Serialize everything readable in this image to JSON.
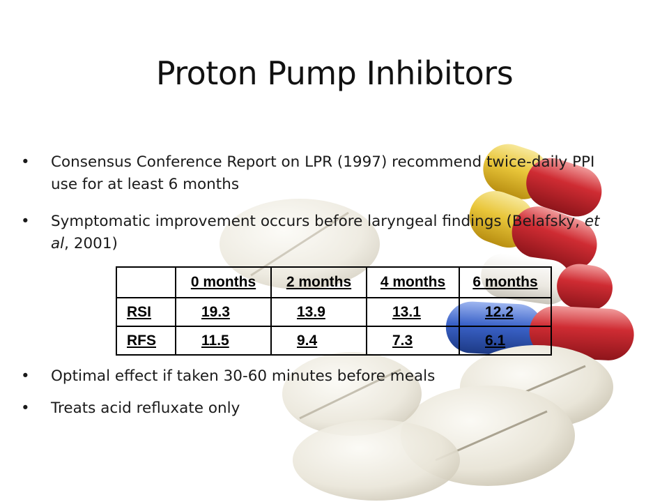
{
  "slide": {
    "title": "Proton Pump Inhibitors",
    "bullets": [
      {
        "marker": "•",
        "text": "Consensus Conference Report on LPR (1997) recommend twice-daily PPI use for at least 6 months"
      },
      {
        "marker": "•",
        "text_parts": [
          "Symptomatic improvement occurs before laryngeal findings (Belafsky, ",
          "et al",
          ", 2001)"
        ]
      },
      {
        "marker": "•",
        "text": "Optimal effect if taken 30-60 minutes before meals"
      },
      {
        "marker": "•",
        "text": "Treats acid refluxate only"
      }
    ],
    "table": {
      "header": [
        "",
        "0 months",
        "2 months",
        "4 months",
        "6 months"
      ],
      "rows": [
        {
          "label": "RSI",
          "values": [
            "19.3",
            "13.9",
            "13.1",
            "12.2"
          ]
        },
        {
          "label": "RFS",
          "values": [
            "11.5",
            "9.4",
            "7.3",
            "6.1"
          ]
        }
      ]
    },
    "decoration": {
      "icons": [
        "capsule-yellow-red-icon",
        "capsule-blue-red-icon",
        "tablet-pill-icon"
      ],
      "colors": {
        "capsule_yellow": "#e8c93a",
        "capsule_red": "#c8242c",
        "capsule_blue": "#3a62c8",
        "tablet": "#ece8dc"
      }
    }
  }
}
